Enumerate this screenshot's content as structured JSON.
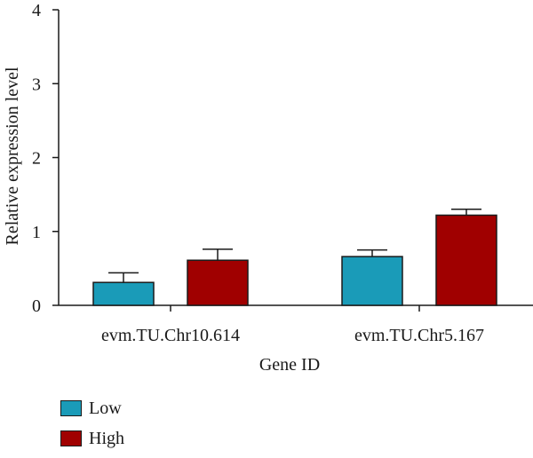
{
  "chart_data": {
    "type": "bar",
    "categories": [
      "evm.TU.Chr10.614",
      "evm.TU.Chr5.167"
    ],
    "series": [
      {
        "name": "Low",
        "color": "#1a9bb8",
        "values": [
          0.31,
          0.66
        ],
        "errors": [
          0.13,
          0.09
        ]
      },
      {
        "name": "High",
        "color": "#a00000",
        "values": [
          0.61,
          1.22
        ],
        "errors": [
          0.15,
          0.08
        ]
      }
    ],
    "xlabel": "Gene ID",
    "ylabel": "Relative expression level",
    "ylim": [
      0,
      4
    ],
    "yticks": [
      "0",
      "1",
      "2",
      "3",
      "4"
    ],
    "grid": false,
    "legend_position": "bottom-left"
  }
}
